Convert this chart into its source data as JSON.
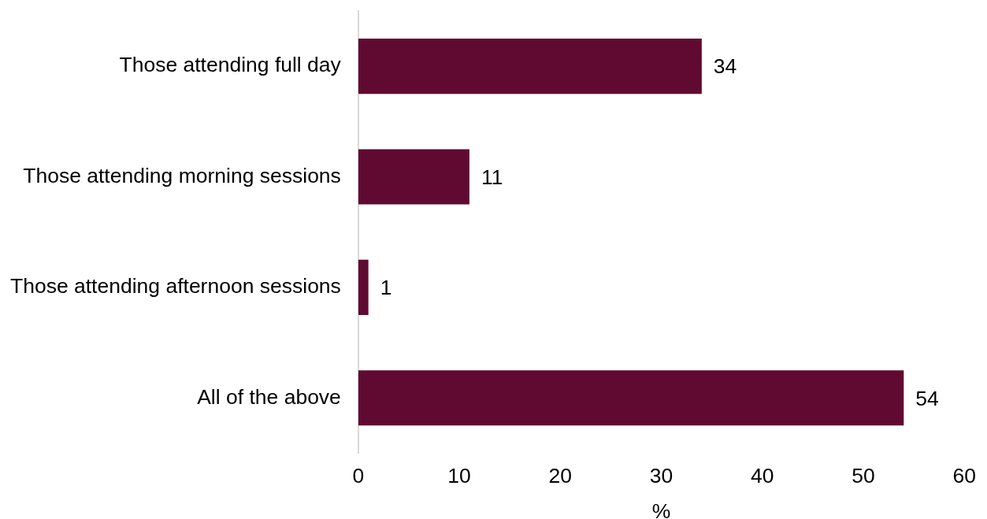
{
  "chart_data": {
    "type": "bar",
    "orientation": "horizontal",
    "categories": [
      "Those attending full day",
      "Those attending morning sessions",
      "Those attending afternoon sessions",
      "All of the above"
    ],
    "values": [
      34,
      11,
      1,
      54
    ],
    "color": "#610a31",
    "xlabel": "%",
    "xlim": [
      0,
      60
    ],
    "xticks": [
      0,
      10,
      20,
      30,
      40,
      50,
      60
    ],
    "data_labels": true,
    "legend": false
  }
}
